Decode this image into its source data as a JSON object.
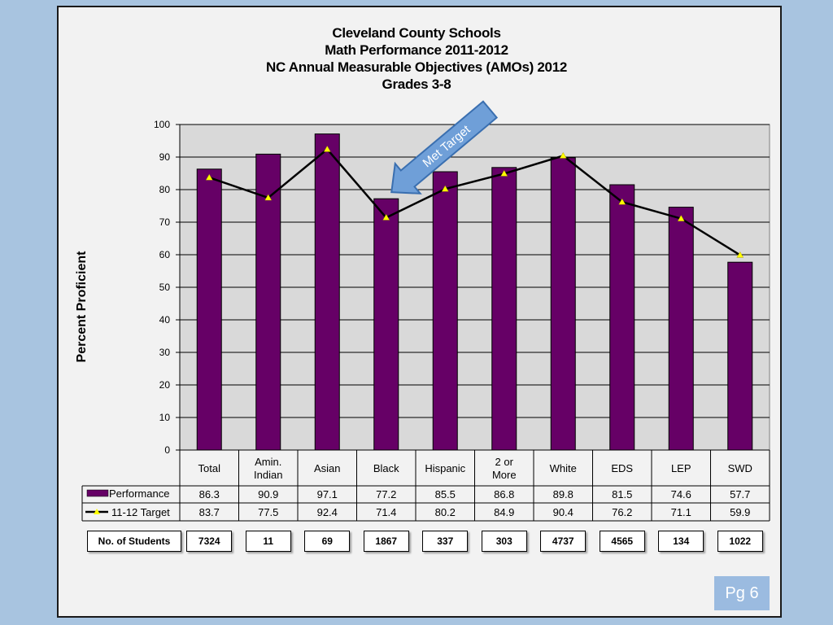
{
  "title_lines": [
    "Cleveland County Schools",
    "Math Performance 2011-2012",
    "NC Annual Measurable Objectives (AMOs) 2012",
    "Grades 3-8"
  ],
  "ylabel": "Percent Proficient",
  "annotation": "Met Target",
  "page_label": "Pg 6",
  "students_label": "No. of Students",
  "students": [
    "7324",
    "11",
    "69",
    "1867",
    "337",
    "303",
    "4737",
    "4565",
    "134",
    "1022"
  ],
  "colors": {
    "bar": "#660066",
    "line": "#000000",
    "marker": "#ffff00",
    "plot_bg": "#d9d9d9",
    "arrow_fill": "#6f9fd8",
    "arrow_stroke": "#3a6fb0"
  },
  "chart_data": {
    "type": "bar",
    "categories": [
      "Total",
      "Amin.\nIndian",
      "Asian",
      "Black",
      "Hispanic",
      "2 or\nMore",
      "White",
      "EDS",
      "LEP",
      "SWD"
    ],
    "series": [
      {
        "name": "Performance",
        "type": "bar",
        "values": [
          86.3,
          90.9,
          97.1,
          77.2,
          85.5,
          86.8,
          89.8,
          81.5,
          74.6,
          57.7
        ]
      },
      {
        "name": "11-12 Target",
        "type": "line",
        "values": [
          83.7,
          77.5,
          92.4,
          71.4,
          80.2,
          84.9,
          90.4,
          76.2,
          71.1,
          59.9
        ]
      }
    ],
    "ylim": [
      0,
      100
    ],
    "yticks": [
      0,
      10,
      20,
      30,
      40,
      50,
      60,
      70,
      80,
      90,
      100
    ],
    "ylabel": "Percent Proficient",
    "grid": true,
    "legend": "data-table"
  }
}
